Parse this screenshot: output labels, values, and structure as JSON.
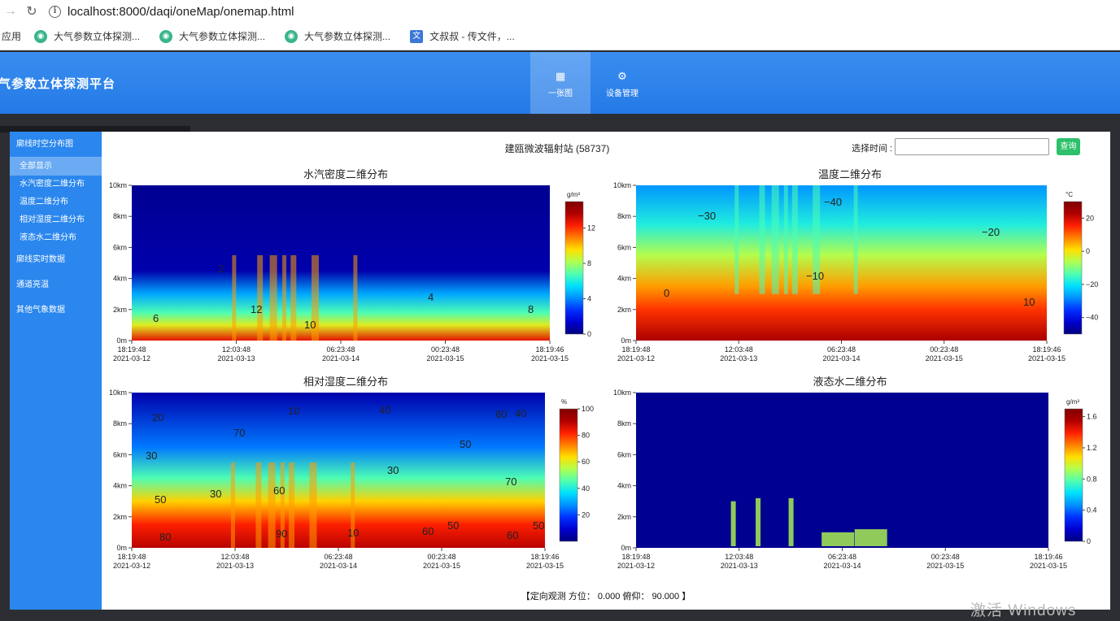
{
  "browser": {
    "url": "localhost:8000/daqi/oneMap/onemap.html",
    "apps_label": "应用",
    "bookmarks": [
      "大气参数立体探测...",
      "大气参数立体探测...",
      "大气参数立体探测...",
      "文叔叔 - 传文件，..."
    ]
  },
  "header": {
    "title": "气参数立体探测平台",
    "tabs": [
      {
        "label": "一张图",
        "icon": "map-icon",
        "active": true
      },
      {
        "label": "设备管理",
        "icon": "gear-icon",
        "active": false
      }
    ]
  },
  "sidebar": {
    "section1": "廓线时空分布图",
    "subitems": [
      "全部显示",
      "水汽密度二维分布",
      "温度二维分布",
      "相对湿度二维分布",
      "液态水二维分布"
    ],
    "items": [
      "廓线实时数据",
      "通道亮温",
      "其他气象数据"
    ]
  },
  "panel": {
    "station": "建瓯微波辐射站 (58737)",
    "time_label": "选择时间 :",
    "time_value": "",
    "query_label": "查询",
    "footer": "【定向观测 方位： 0.000 俯仰： 90.000 】"
  },
  "watermark": "激活 Windows",
  "colors": {
    "header_blue": "#2479e6",
    "sidebar_blue": "#2b87ee",
    "query_green": "#2ec06b"
  },
  "chart_data": [
    {
      "type": "heatmap",
      "title": "水汽密度二维分布",
      "unit": "g/m³",
      "y_ticks": [
        "10km",
        "8km",
        "6km",
        "4km",
        "2km",
        "0m"
      ],
      "x_ticks": [
        [
          "18:19:48",
          "2021-03-12"
        ],
        [
          "12:03:48",
          "2021-03-13"
        ],
        [
          "06:23:48",
          "2021-03-14"
        ],
        [
          "00:23:48",
          "2021-03-15"
        ],
        [
          "18:19:46",
          "2021-03-15"
        ]
      ],
      "colorbar_ticks": [
        "12",
        "8",
        "4",
        "0"
      ],
      "colorbar_range": [
        0,
        15
      ],
      "contour_labels": [
        "2",
        "12",
        "6",
        "10",
        "4",
        "8"
      ]
    },
    {
      "type": "heatmap",
      "title": "温度二维分布",
      "unit": "°C",
      "y_ticks": [
        "10km",
        "8km",
        "6km",
        "4km",
        "2km",
        "0m"
      ],
      "x_ticks": [
        [
          "18:19:48",
          "2021-03-12"
        ],
        [
          "12:03:48",
          "2021-03-13"
        ],
        [
          "06:23:48",
          "2021-03-14"
        ],
        [
          "00:23:48",
          "2021-03-15"
        ],
        [
          "18:19:46",
          "2021-03-15"
        ]
      ],
      "colorbar_ticks": [
        "20",
        "0",
        "−20",
        "−40"
      ],
      "colorbar_range": [
        -50,
        30
      ],
      "contour_labels": [
        "−40",
        "−30",
        "−20",
        "−10",
        "0",
        "10"
      ]
    },
    {
      "type": "heatmap",
      "title": "相对湿度二维分布",
      "unit": "%",
      "y_ticks": [
        "10km",
        "8km",
        "6km",
        "4km",
        "2km",
        "0m"
      ],
      "x_ticks": [
        [
          "18:19:48",
          "2021-03-12"
        ],
        [
          "12:03:48",
          "2021-03-13"
        ],
        [
          "06:23:48",
          "2021-03-14"
        ],
        [
          "00:23:48",
          "2021-03-15"
        ],
        [
          "18:19:46",
          "2021-03-15"
        ]
      ],
      "colorbar_ticks": [
        "100",
        "80",
        "60",
        "40",
        "20"
      ],
      "colorbar_range": [
        0,
        100
      ],
      "contour_labels": [
        "20",
        "10",
        "30",
        "70",
        "50",
        "30",
        "60",
        "80",
        "90",
        "10",
        "40",
        "30",
        "60",
        "50",
        "40",
        "70",
        "60",
        "50",
        "60",
        "50"
      ]
    },
    {
      "type": "heatmap",
      "title": "液态水二维分布",
      "unit": "g/m³",
      "y_ticks": [
        "10km",
        "8km",
        "6km",
        "4km",
        "2km",
        "0m"
      ],
      "x_ticks": [
        [
          "18:19:48",
          "2021-03-12"
        ],
        [
          "12:03:48",
          "2021-03-13"
        ],
        [
          "06:23:48",
          "2021-03-14"
        ],
        [
          "00:23:48",
          "2021-03-15"
        ],
        [
          "18:19:46",
          "2021-03-15"
        ]
      ],
      "colorbar_ticks": [
        "1.6",
        "1.2",
        "0.8",
        "0.4",
        "0"
      ],
      "colorbar_range": [
        0,
        1.7
      ],
      "contour_labels": []
    }
  ]
}
